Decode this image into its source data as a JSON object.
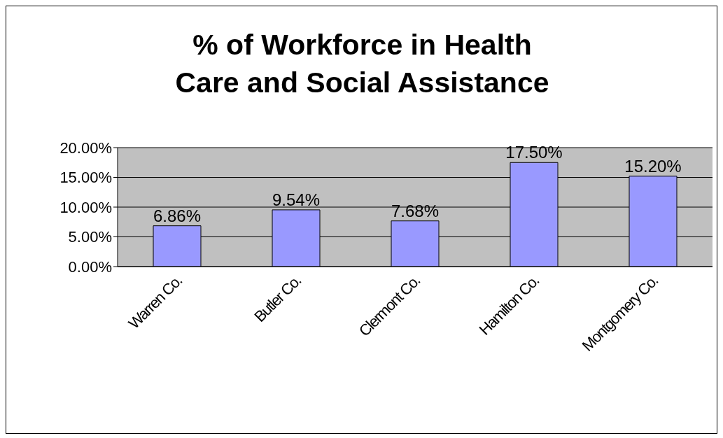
{
  "chart_data": {
    "type": "bar",
    "title": "% of Workforce in Health Care and Social Assistance",
    "categories": [
      "Warren Co.",
      "Butler Co.",
      "Clermont Co.",
      "Hamilton Co.",
      "Montgomery Co."
    ],
    "values": [
      6.86,
      9.54,
      7.68,
      17.5,
      15.2
    ],
    "value_labels": [
      "6.86%",
      "9.54%",
      "7.68%",
      "17.50%",
      "15.20%"
    ],
    "color": "#9999ff",
    "ylim": [
      0,
      20
    ],
    "yticks": [
      {
        "value": 0,
        "label": "0.00%"
      },
      {
        "value": 5,
        "label": "5.00%"
      },
      {
        "value": 10,
        "label": "10.00%"
      },
      {
        "value": 15,
        "label": "15.00%"
      },
      {
        "value": 20,
        "label": "20.00%"
      }
    ],
    "grid": "y"
  }
}
